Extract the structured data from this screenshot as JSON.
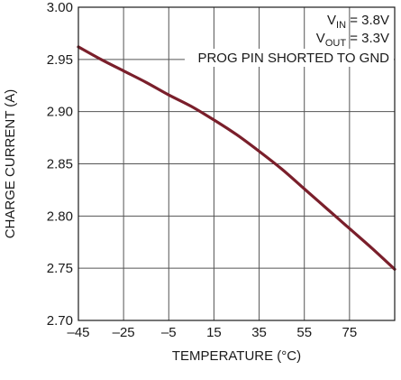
{
  "chart_data": {
    "type": "line",
    "xlabel": "TEMPERATURE (°C)",
    "ylabel": "CHARGE CURRENT (A)",
    "xlim": [
      -45,
      95
    ],
    "ylim": [
      2.7,
      3.0
    ],
    "xticks": [
      -45,
      -25,
      -5,
      15,
      35,
      55,
      75
    ],
    "xtick_labels": [
      "–45",
      "–25",
      "–5",
      "15",
      "35",
      "55",
      "75"
    ],
    "yticks": [
      2.7,
      2.75,
      2.8,
      2.85,
      2.9,
      2.95,
      3.0
    ],
    "ytick_labels": [
      "2.70",
      "2.75",
      "2.80",
      "2.85",
      "2.90",
      "2.95",
      "3.00"
    ],
    "grid": true,
    "series": [
      {
        "color": "#7a1f2b",
        "x": [
          -45,
          -35,
          -25,
          -15,
          -5,
          5,
          15,
          25,
          35,
          45,
          55,
          65,
          75,
          85,
          95
        ],
        "y": [
          2.962,
          2.95,
          2.939,
          2.928,
          2.916,
          2.905,
          2.892,
          2.878,
          2.862,
          2.845,
          2.826,
          2.807,
          2.788,
          2.769,
          2.749
        ]
      }
    ],
    "annotations": {
      "vin": {
        "main": "V",
        "sub": "IN",
        "rest": " = 3.8V"
      },
      "vout": {
        "main": "V",
        "sub": "OUT",
        "rest": " = 3.3V"
      },
      "prog": "PROG PIN SHORTED TO GND"
    }
  }
}
